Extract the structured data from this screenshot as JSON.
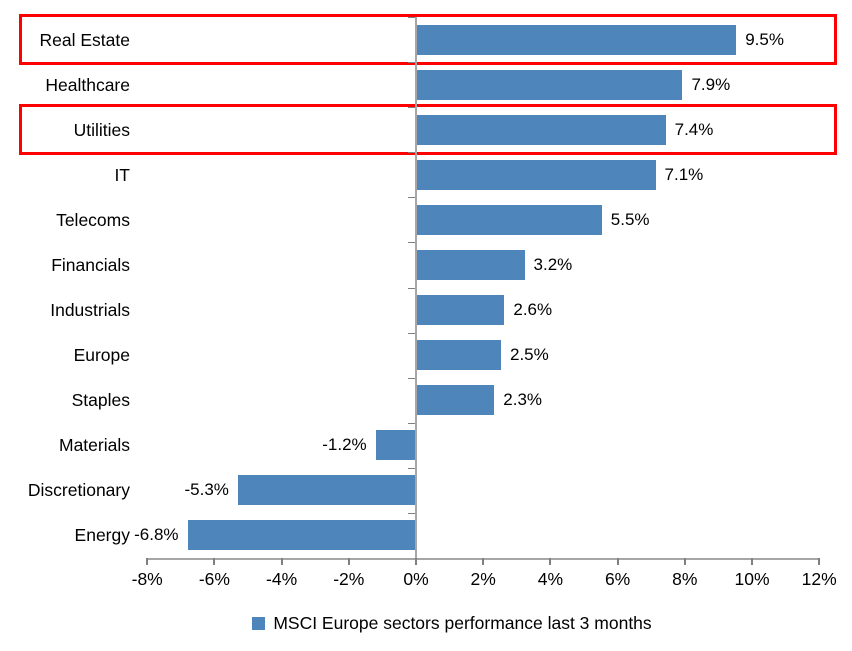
{
  "chart_data": {
    "type": "bar",
    "orientation": "horizontal",
    "title": "",
    "categories": [
      "Real Estate",
      "Healthcare",
      "Utilities",
      "IT",
      "Telecoms",
      "Financials",
      "Industrials",
      "Europe",
      "Staples",
      "Materials",
      "Discretionary",
      "Energy"
    ],
    "values": [
      9.5,
      7.9,
      7.4,
      7.1,
      5.5,
      3.2,
      2.6,
      2.5,
      2.3,
      -1.2,
      -5.3,
      -6.8
    ],
    "data_labels": [
      "9.5%",
      "7.9%",
      "7.4%",
      "7.1%",
      "5.5%",
      "3.2%",
      "2.6%",
      "2.5%",
      "2.3%",
      "-1.2%",
      "-5.3%",
      "-6.8%"
    ],
    "xlim": [
      -8,
      12
    ],
    "x_tick_step": 2,
    "x_tick_labels": [
      "-8%",
      "-6%",
      "-4%",
      "-2%",
      "0%",
      "2%",
      "4%",
      "6%",
      "8%",
      "10%",
      "12%"
    ],
    "grid": "off",
    "legend": "MSCI Europe sectors performance last 3 months",
    "legend_position": "bottom-center",
    "colors": {
      "bar": "#4E86BC",
      "axis_line": "#A6A6A6",
      "tick": "#808080",
      "text": "#000000",
      "highlight_border": "#FE0000",
      "background": "#FFFFFF"
    },
    "highlights": {
      "description": "red rectangles outlining rows",
      "categories": [
        "Real Estate",
        "Utilities"
      ],
      "indices": [
        0,
        2
      ]
    }
  }
}
